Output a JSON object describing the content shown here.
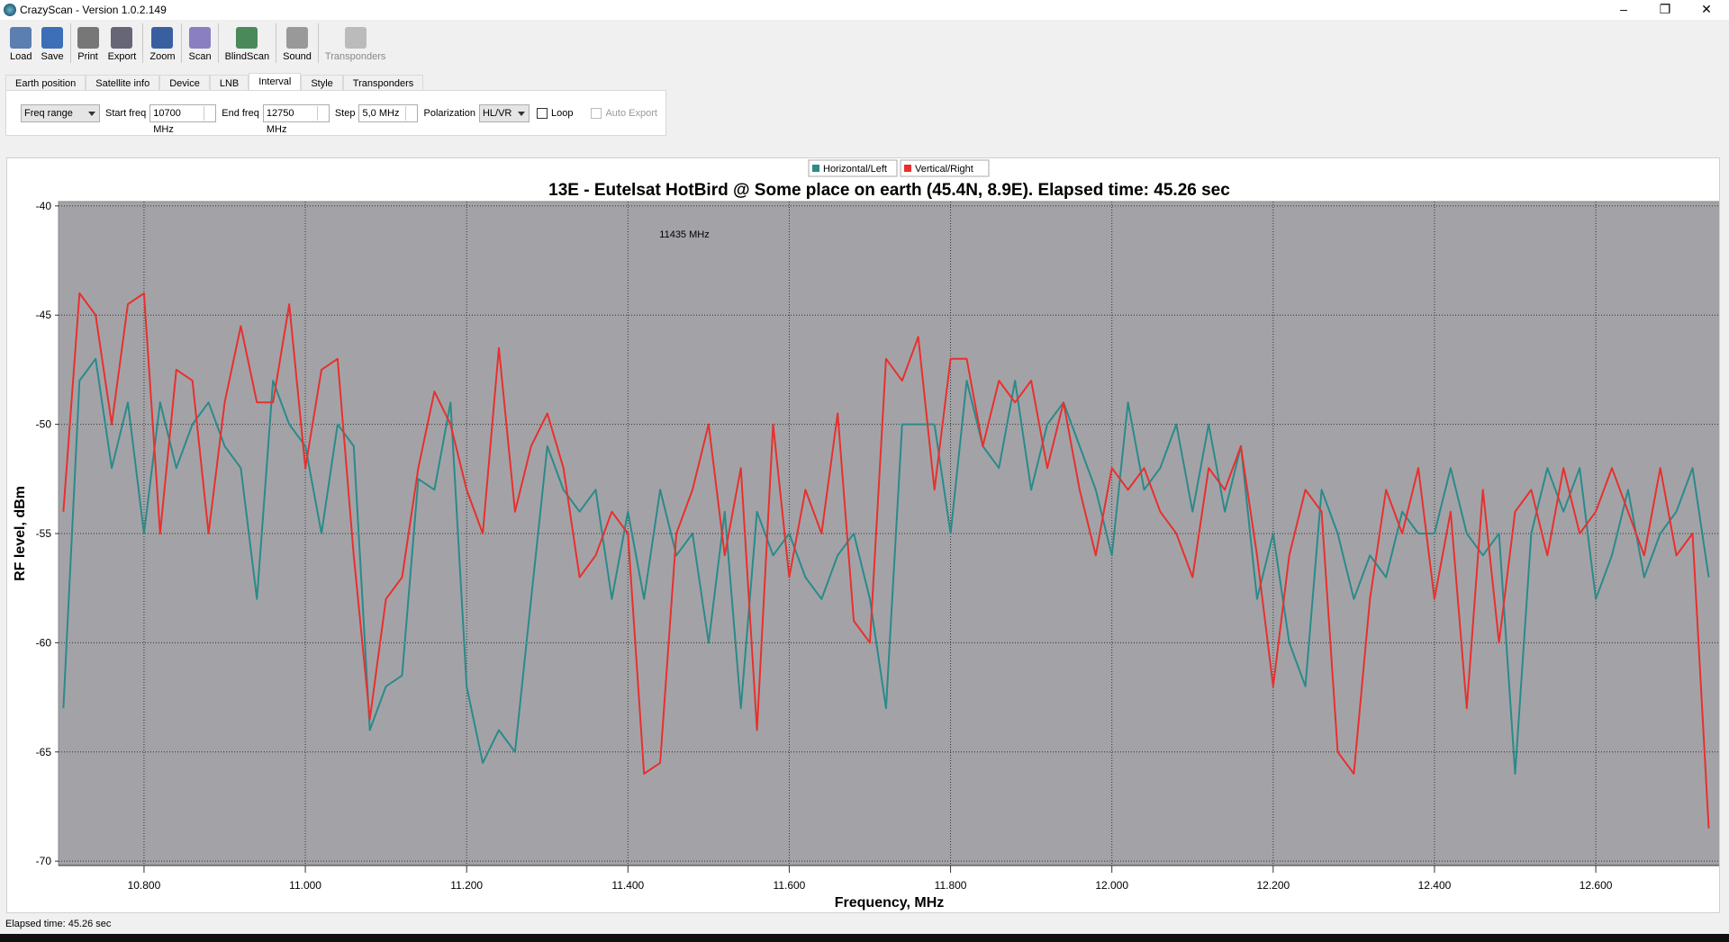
{
  "window": {
    "title": "CrazyScan - Version 1.0.2.149"
  },
  "toolbar": [
    "Load",
    "Save",
    "Print",
    "Export",
    "Zoom",
    "Scan",
    "BlindScan",
    "Sound",
    "Transponders"
  ],
  "tabs": [
    "Earth position",
    "Satellite info",
    "Device",
    "LNB",
    "Interval",
    "Style",
    "Transponders"
  ],
  "interval": {
    "mode": "Freq range",
    "start_label": "Start freq",
    "start": "10700 MHz",
    "end_label": "End freq",
    "end": "12750 MHz",
    "step_label": "Step",
    "step": "5,0 MHz",
    "pol_label": "Polarization",
    "pol": "HL/VR",
    "loop": "Loop",
    "auto_export": "Auto Export"
  },
  "chart_data": {
    "type": "line",
    "title": "13E - Eutelsat HotBird @ Some place on earth (45.4N, 8.9E). Elapsed time: 45.26 sec",
    "x_label": "Frequency, MHz",
    "y_label": "RF level, dBm",
    "annotations": [
      "11435 MHz"
    ],
    "x": [
      10700,
      10720,
      10740,
      10760,
      10780,
      10800,
      10820,
      10840,
      10860,
      10880,
      10900,
      10920,
      10940,
      10960,
      10980,
      11000,
      11020,
      11040,
      11060,
      11080,
      11100,
      11120,
      11140,
      11160,
      11180,
      11200,
      11220,
      11240,
      11260,
      11280,
      11300,
      11320,
      11340,
      11360,
      11380,
      11400,
      11420,
      11440,
      11460,
      11480,
      11500,
      11520,
      11540,
      11560,
      11580,
      11600,
      11620,
      11640,
      11660,
      11680,
      11700,
      11720,
      11740,
      11760,
      11780,
      11800,
      11820,
      11840,
      11860,
      11880,
      11900,
      11920,
      11940,
      11960,
      11980,
      12000,
      12020,
      12040,
      12060,
      12080,
      12100,
      12120,
      12140,
      12160,
      12180,
      12200,
      12220,
      12240,
      12260,
      12280,
      12300,
      12320,
      12340,
      12360,
      12380,
      12400,
      12420,
      12440,
      12460,
      12480,
      12500,
      12520,
      12540,
      12560,
      12580,
      12600,
      12620,
      12640,
      12660,
      12680,
      12700,
      12720,
      12740
    ],
    "series": [
      {
        "name": "Horizontal/Left",
        "color": "#2b8a8a",
        "values": [
          -63,
          -48,
          -47,
          -52,
          -49,
          -55,
          -49,
          -52,
          -50,
          -49,
          -51,
          -52,
          -58,
          -48,
          -50,
          -51,
          -55,
          -50,
          -51,
          -64,
          -62,
          -61.5,
          -52.5,
          -53,
          -49,
          -62,
          -65.5,
          -64,
          -65,
          -58,
          -51,
          -53,
          -54,
          -53,
          -58,
          -54,
          -58,
          -53,
          -56,
          -55,
          -60,
          -54,
          -63,
          -54,
          -56,
          -55,
          -57,
          -58,
          -56,
          -55,
          -58,
          -63,
          -50,
          -50,
          -50,
          -55,
          -48,
          -51,
          -52,
          -48,
          -53,
          -50,
          -49,
          -51,
          -53,
          -56,
          -49,
          -53,
          -52,
          -50,
          -54,
          -50,
          -54,
          -51,
          -58,
          -55,
          -60,
          -62,
          -53,
          -55,
          -58,
          -56,
          -57,
          -54,
          -55,
          -55,
          -52,
          -55,
          -56,
          -55,
          -66,
          -55,
          -52,
          -54,
          -52,
          -58,
          -56,
          -53,
          -57,
          -55,
          -54,
          -52,
          -57
        ]
      },
      {
        "name": "Vertical/Right",
        "color": "#e8302e",
        "values": [
          -54,
          -44,
          -45,
          -50,
          -44.5,
          -44,
          -55,
          -47.5,
          -48,
          -55,
          -49,
          -45.5,
          -49,
          -49,
          -44.5,
          -52,
          -47.5,
          -47,
          -56,
          -63.5,
          -58,
          -57,
          -52,
          -48.5,
          -50,
          -53,
          -55,
          -46.5,
          -54,
          -51,
          -49.5,
          -52,
          -57,
          -56,
          -54,
          -55,
          -66,
          -65.5,
          -55,
          -53,
          -50,
          -56,
          -52,
          -64,
          -50,
          -57,
          -53,
          -55,
          -49.5,
          -59,
          -60,
          -47,
          -48,
          -46,
          -53,
          -47,
          -47,
          -51,
          -48,
          -49,
          -48,
          -52,
          -49,
          -53,
          -56,
          -52,
          -53,
          -52,
          -54,
          -55,
          -57,
          -52,
          -53,
          -51,
          -56,
          -62,
          -56,
          -53,
          -54,
          -65,
          -66,
          -58,
          -53,
          -55,
          -52,
          -58,
          -54,
          -63,
          -53,
          -60,
          -54,
          -53,
          -56,
          -52,
          -55,
          -54,
          -52,
          -54,
          -56,
          -52,
          -56,
          -55,
          -68.5
        ]
      }
    ],
    "xlim": [
      10694,
      12754
    ],
    "ylim": [
      -70.2,
      -39.8
    ],
    "xticks": [
      {
        "value": 10800,
        "label": "10.800"
      },
      {
        "value": 11000,
        "label": "11.000"
      },
      {
        "value": 11200,
        "label": "11.200"
      },
      {
        "value": 11400,
        "label": "11.400"
      },
      {
        "value": 11600,
        "label": "11.600"
      },
      {
        "value": 11800,
        "label": "11.800"
      },
      {
        "value": 12000,
        "label": "12.000"
      },
      {
        "value": 12200,
        "label": "12.200"
      },
      {
        "value": 12400,
        "label": "12.400"
      },
      {
        "value": 12600,
        "label": "12.600"
      }
    ],
    "yticks": [
      -40,
      -45,
      -50,
      -55,
      -60,
      -65,
      -70
    ],
    "grid": true,
    "legend": "top",
    "plot_background": "#a3a3a7"
  },
  "status": "Elapsed time: 45.26 sec"
}
